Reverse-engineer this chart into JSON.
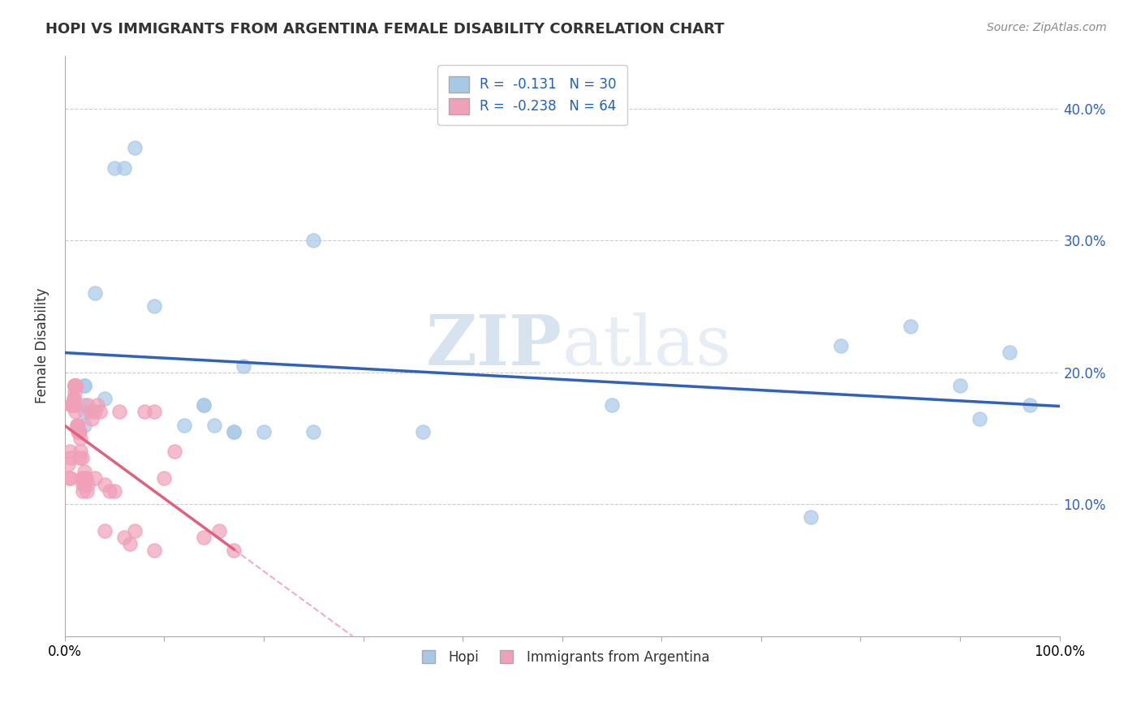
{
  "title": "HOPI VS IMMIGRANTS FROM ARGENTINA FEMALE DISABILITY CORRELATION CHART",
  "source": "Source: ZipAtlas.com",
  "ylabel": "Female Disability",
  "watermark": "ZIPatlas",
  "xlim": [
    0.0,
    1.0
  ],
  "ylim": [
    0.0,
    0.44
  ],
  "xtick_positions": [
    0.0,
    0.1,
    0.2,
    0.3,
    0.4,
    0.5,
    0.6,
    0.7,
    0.8,
    0.9,
    1.0
  ],
  "xticklabels_sparse": {
    "0": "0.0%",
    "10": "100.0%"
  },
  "ytick_positions": [
    0.0,
    0.1,
    0.2,
    0.3,
    0.4
  ],
  "yticklabels_right": [
    "",
    "10.0%",
    "20.0%",
    "30.0%",
    "40.0%"
  ],
  "hopi_color": "#a8c8e8",
  "argentina_color": "#f0a0b8",
  "hopi_line_color": "#3060c0",
  "argentina_line_color": "#e06080",
  "hopi_R": -0.131,
  "hopi_N": 30,
  "argentina_R": -0.238,
  "argentina_N": 64,
  "hopi_x": [
    0.02,
    0.02,
    0.02,
    0.02,
    0.02,
    0.03,
    0.04,
    0.05,
    0.06,
    0.07,
    0.09,
    0.12,
    0.14,
    0.14,
    0.15,
    0.17,
    0.17,
    0.18,
    0.2,
    0.25,
    0.25,
    0.36,
    0.55,
    0.75,
    0.78,
    0.85,
    0.9,
    0.92,
    0.95,
    0.97
  ],
  "hopi_y": [
    0.19,
    0.19,
    0.175,
    0.17,
    0.16,
    0.26,
    0.18,
    0.355,
    0.355,
    0.37,
    0.25,
    0.16,
    0.175,
    0.175,
    0.16,
    0.155,
    0.155,
    0.205,
    0.155,
    0.155,
    0.3,
    0.155,
    0.175,
    0.09,
    0.22,
    0.235,
    0.19,
    0.165,
    0.215,
    0.175
  ],
  "argentina_x": [
    0.003,
    0.004,
    0.005,
    0.006,
    0.006,
    0.007,
    0.007,
    0.008,
    0.008,
    0.008,
    0.009,
    0.009,
    0.009,
    0.01,
    0.01,
    0.01,
    0.01,
    0.01,
    0.011,
    0.011,
    0.011,
    0.012,
    0.012,
    0.013,
    0.013,
    0.014,
    0.015,
    0.015,
    0.016,
    0.016,
    0.017,
    0.017,
    0.018,
    0.018,
    0.019,
    0.02,
    0.02,
    0.02,
    0.021,
    0.022,
    0.023,
    0.023,
    0.025,
    0.027,
    0.03,
    0.03,
    0.033,
    0.035,
    0.04,
    0.04,
    0.045,
    0.05,
    0.055,
    0.06,
    0.065,
    0.07,
    0.08,
    0.09,
    0.09,
    0.1,
    0.11,
    0.14,
    0.155,
    0.17
  ],
  "argentina_y": [
    0.13,
    0.12,
    0.14,
    0.12,
    0.135,
    0.175,
    0.175,
    0.175,
    0.175,
    0.175,
    0.175,
    0.18,
    0.18,
    0.19,
    0.185,
    0.19,
    0.19,
    0.19,
    0.19,
    0.19,
    0.17,
    0.16,
    0.16,
    0.16,
    0.155,
    0.155,
    0.135,
    0.155,
    0.15,
    0.14,
    0.135,
    0.12,
    0.115,
    0.11,
    0.12,
    0.115,
    0.12,
    0.125,
    0.12,
    0.11,
    0.115,
    0.175,
    0.17,
    0.165,
    0.17,
    0.12,
    0.175,
    0.17,
    0.115,
    0.08,
    0.11,
    0.11,
    0.17,
    0.075,
    0.07,
    0.08,
    0.17,
    0.065,
    0.17,
    0.12,
    0.14,
    0.075,
    0.08,
    0.065
  ],
  "legend_top_R_color": "#2060c0",
  "legend_top_label1": "R =  -0.131   N = 30",
  "legend_top_label2": "R =  -0.238   N = 64"
}
